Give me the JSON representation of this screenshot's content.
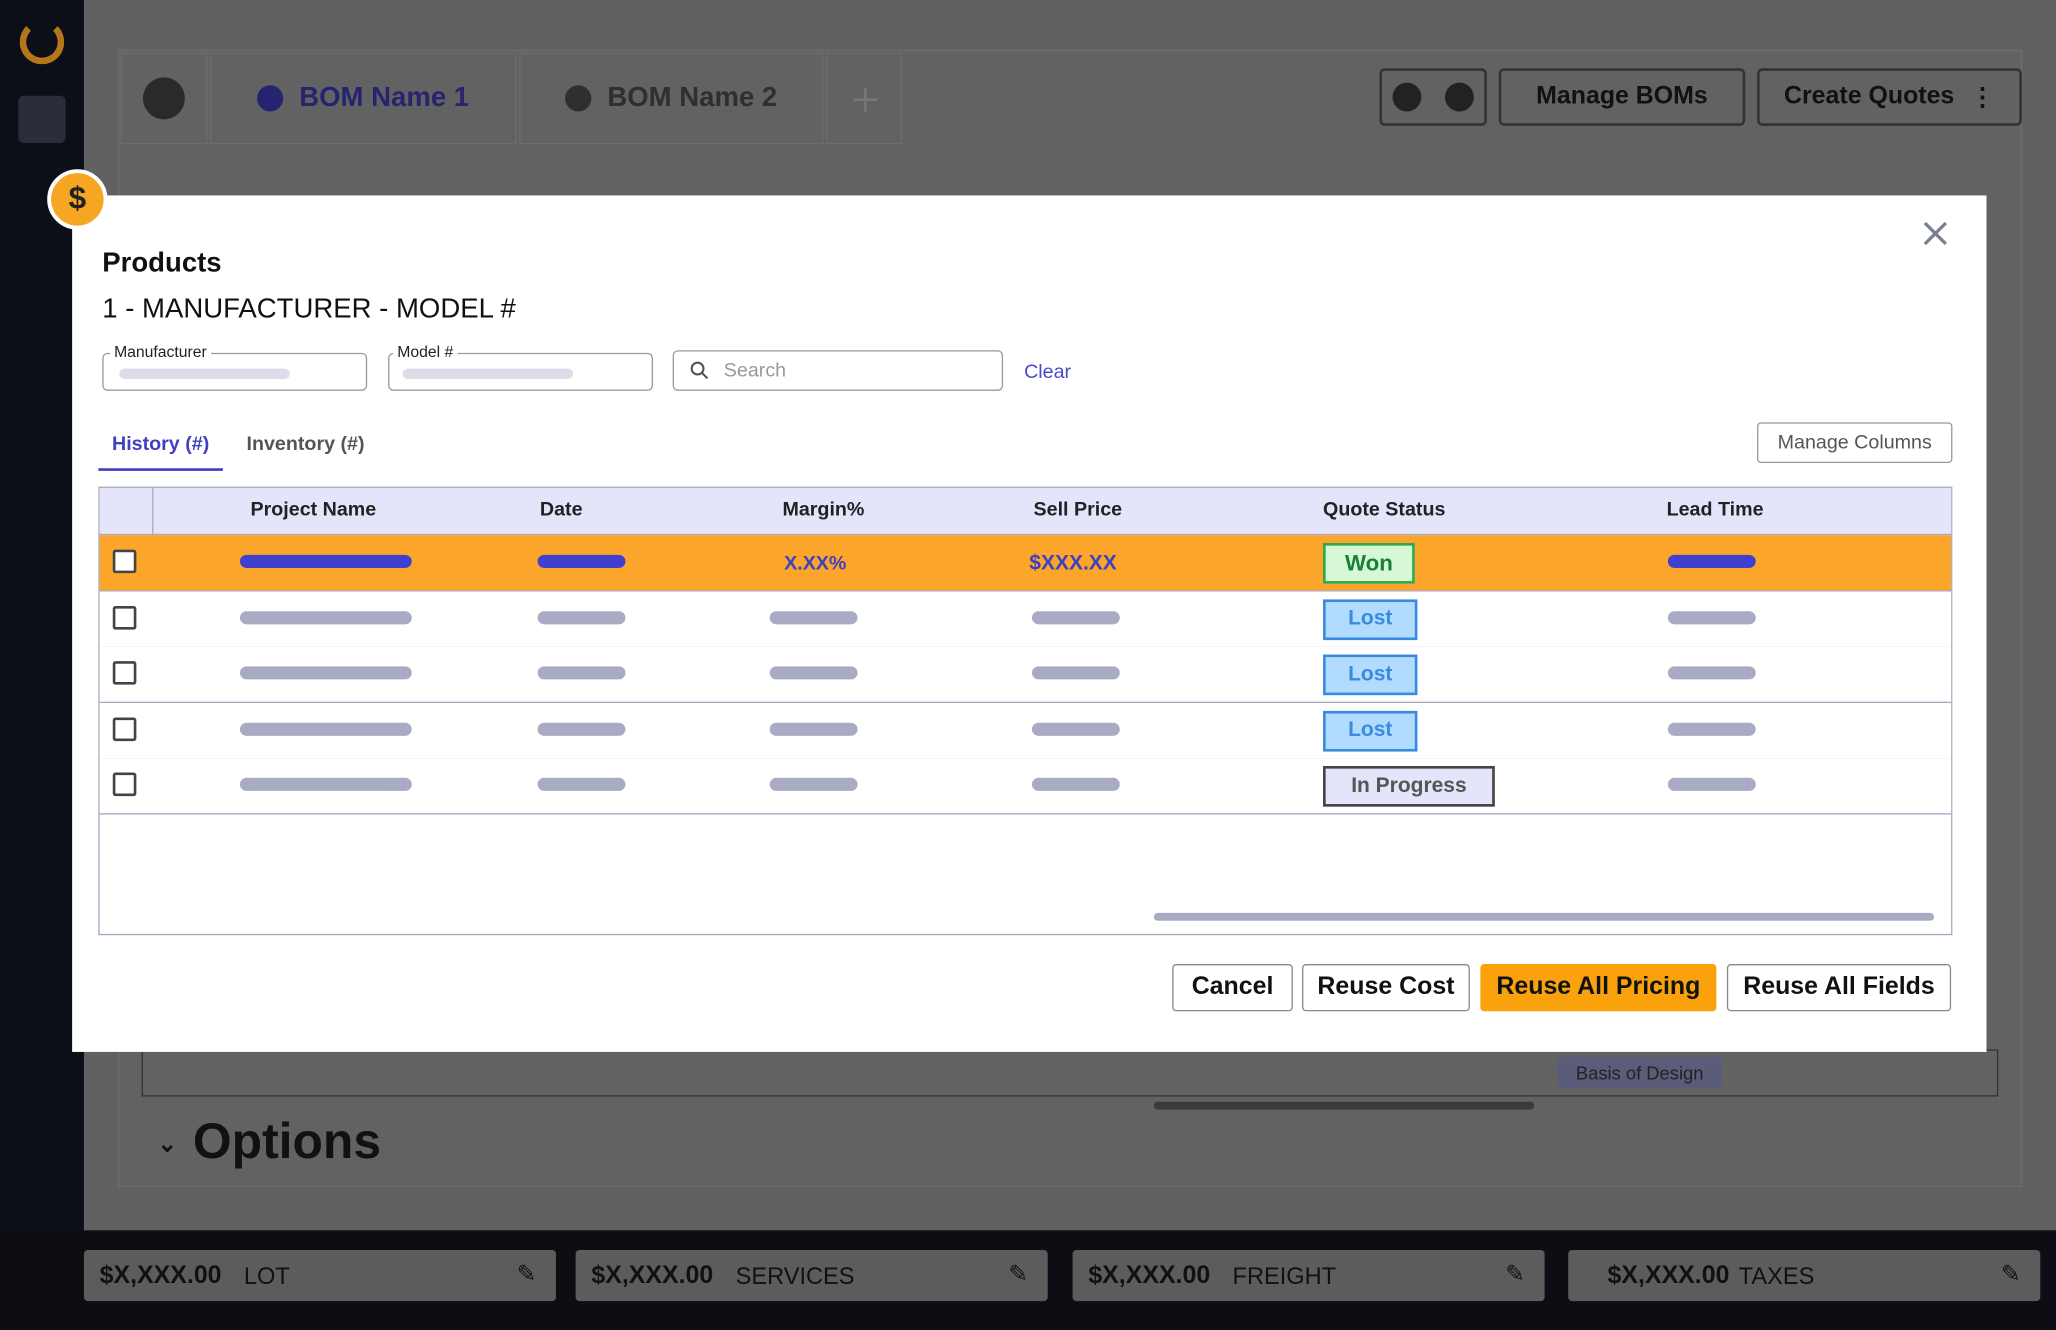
{
  "header": {
    "tabs": [
      "BOM Name 1",
      "BOM Name 2"
    ],
    "buttons": [
      "Manage BOMs",
      "Create Quotes"
    ]
  },
  "background": {
    "chip": "Basis of Design",
    "section": "Options"
  },
  "modal": {
    "title": "Products",
    "subtitle": "1 - MANUFACTURER - MODEL #",
    "filters": {
      "manufacturer": "Manufacturer",
      "model": "Model #",
      "search": "Search",
      "clear": "Clear"
    },
    "tabs": [
      "History (#)",
      "Inventory (#)"
    ],
    "manage_columns": "Manage Columns",
    "table": {
      "columns": [
        "Project Name",
        "Date",
        "Margin%",
        "Sell Price",
        "Quote Status",
        "Lead Time"
      ],
      "rows": [
        {
          "margin": "X.XX%",
          "sell_price": "$XXX.XX",
          "status": "Won"
        },
        {
          "status": "Lost"
        },
        {
          "status": "Lost"
        },
        {
          "status": "Lost"
        },
        {
          "status": "In Progress"
        }
      ]
    },
    "buttons": [
      "Cancel",
      "Reuse Cost",
      "Reuse All Pricing",
      "Reuse All Fields"
    ]
  },
  "footer": {
    "totals": [
      {
        "amount": "$X,XXX.00",
        "label": "LOT"
      },
      {
        "amount": "$X,XXX.00",
        "label": "SERVICES"
      },
      {
        "amount": "$X,XXX.00",
        "label": "FREIGHT"
      },
      {
        "amount": "$X,XXX.00",
        "label": "TAXES"
      }
    ]
  }
}
